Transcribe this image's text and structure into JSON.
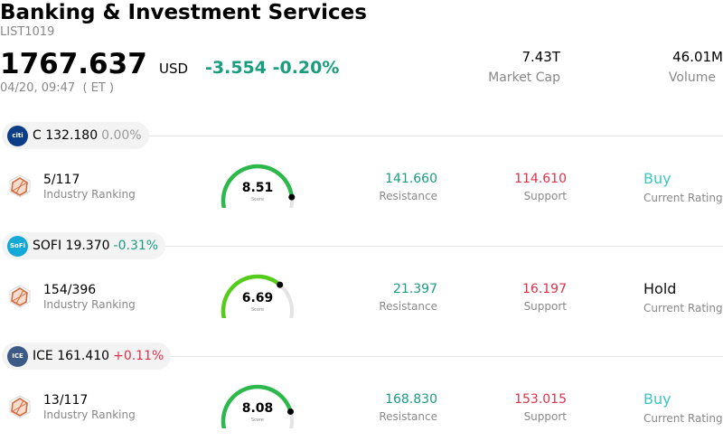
{
  "header": {
    "title": "Banking & Investment Services",
    "code": "LIST1019",
    "price": "1767.637",
    "currency": "USD",
    "change": "-3.554 -0.20%",
    "time": "04/20, 09:47  ( ET )",
    "market_cap_value": "7.43T",
    "market_cap_label": "Market Cap",
    "volume_value": "46.01M",
    "volume_label": "Volume"
  },
  "colors": {
    "positive": "#1a9c7f",
    "negative": "#e0304a",
    "gauge_track": "#e3e3e8"
  },
  "stocks": [
    {
      "tag": "C 132.180",
      "tag_change": "0.00%",
      "tag_change_color": "#999999",
      "logo": "citi",
      "logo_bg": "#0c3d87",
      "rank": "5/117",
      "rank_label": "Industry Ranking",
      "score": "8.51",
      "score_label": "Score",
      "score_value": 8.51,
      "gauge_color": "#2cb84a",
      "resistance": "141.660",
      "resistance_label": "Resistance",
      "support": "114.610",
      "support_label": "Support",
      "rating": "Buy",
      "rating_color": "#3cc6c0",
      "rating_label": "Current Rating"
    },
    {
      "tag": "SOFI 19.370",
      "tag_change": "-0.31%",
      "tag_change_color": "#1a9c7f",
      "logo": "SoFi",
      "logo_bg": "#14a8d6",
      "rank": "154/396",
      "rank_label": "Industry Ranking",
      "score": "6.69",
      "score_label": "Score",
      "score_value": 6.69,
      "gauge_color": "#55cc1a",
      "resistance": "21.397",
      "resistance_label": "Resistance",
      "support": "16.197",
      "support_label": "Support",
      "rating": "Hold",
      "rating_color": "#111111",
      "rating_label": "Current Rating"
    },
    {
      "tag": "ICE 161.410",
      "tag_change": "+0.11%",
      "tag_change_color": "#e0304a",
      "logo": "ICE",
      "logo_bg": "#3b5a88",
      "rank": "13/117",
      "rank_label": "Industry Ranking",
      "score": "8.08",
      "score_label": "Score",
      "score_value": 8.08,
      "gauge_color": "#2cb84a",
      "resistance": "168.830",
      "resistance_label": "Resistance",
      "support": "153.015",
      "support_label": "Support",
      "rating": "Buy",
      "rating_color": "#3cc6c0",
      "rating_label": "Current Rating"
    }
  ]
}
